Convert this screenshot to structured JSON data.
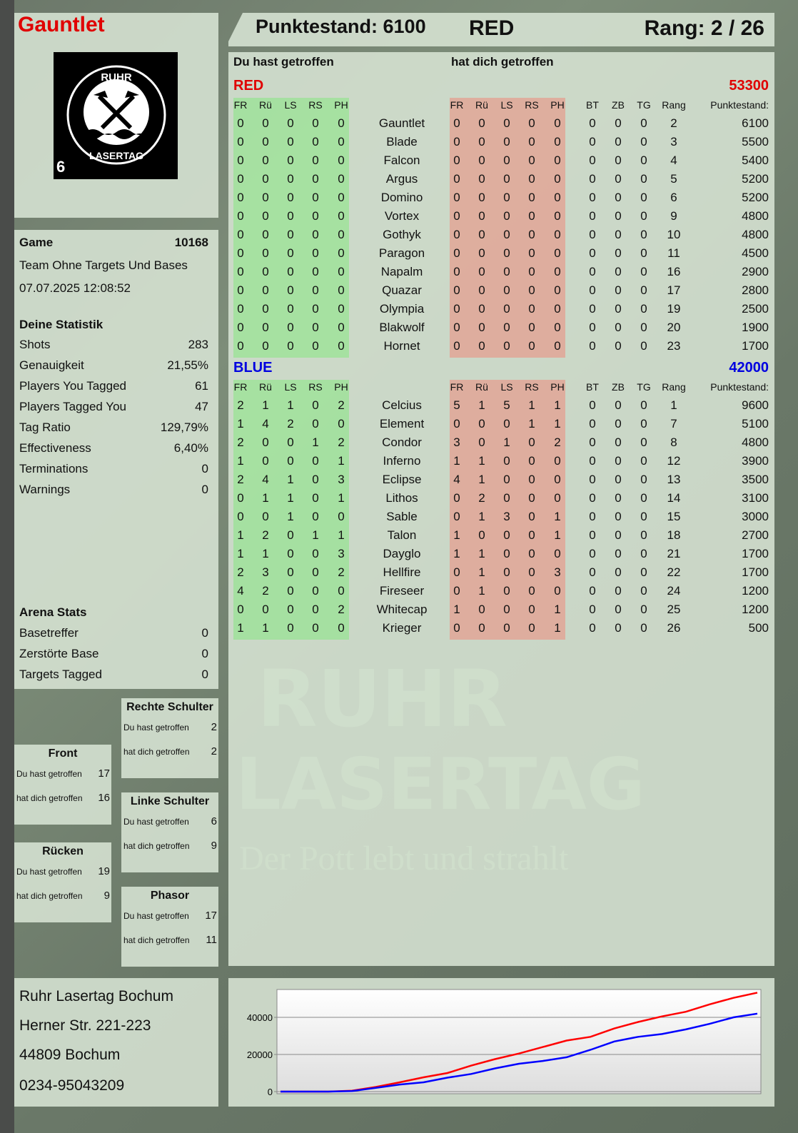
{
  "player": {
    "name": "Gauntlet",
    "logo_text": "RUHR LASERTAG",
    "logo_number": "6"
  },
  "header": {
    "score_label": "Punktestand: 6100",
    "team": "RED",
    "rank_label": "Rang: 2 / 26"
  },
  "game": {
    "label": "Game",
    "id": "10168",
    "mode": "Team Ohne Targets Und Bases",
    "datetime": "07.07.2025 12:08:52"
  },
  "stats": {
    "title": "Deine Statistik",
    "items": [
      {
        "label": "Shots",
        "value": "283"
      },
      {
        "label": "Genauigkeit",
        "value": "21,55%"
      },
      {
        "label": "Players You Tagged",
        "value": "61"
      },
      {
        "label": "Players Tagged You",
        "value": "47"
      },
      {
        "label": "Tag Ratio",
        "value": "129,79%"
      },
      {
        "label": "Effectiveness",
        "value": "6,40%"
      },
      {
        "label": "Terminations",
        "value": "0"
      },
      {
        "label": "Warnings",
        "value": "0"
      }
    ]
  },
  "arena": {
    "title": "Arena Stats",
    "items": [
      {
        "label": "Basetreffer",
        "value": "0"
      },
      {
        "label": "Zerstörte Base",
        "value": "0"
      },
      {
        "label": "Targets Tagged",
        "value": "0"
      }
    ]
  },
  "zones": [
    {
      "title": "Rechte Schulter",
      "hit_label": "Du hast getroffen",
      "hit": "2",
      "got_label": "hat dich getroffen",
      "got": "2"
    },
    {
      "title": "Front",
      "hit_label": "Du hast getroffen",
      "hit": "17",
      "got_label": "hat dich getroffen",
      "got": "16"
    },
    {
      "title": "Linke Schulter",
      "hit_label": "Du hast getroffen",
      "hit": "6",
      "got_label": "hat dich getroffen",
      "got": "9"
    },
    {
      "title": "Rücken",
      "hit_label": "Du hast getroffen",
      "hit": "19",
      "got_label": "hat dich getroffen",
      "got": "9"
    },
    {
      "title": "Phasor",
      "hit_label": "Du hast getroffen",
      "hit": "17",
      "got_label": "hat dich getroffen",
      "got": "11"
    }
  ],
  "address": {
    "line1": "Ruhr Lasertag Bochum",
    "line2": "Herner Str. 221-223",
    "line3": "44809 Bochum",
    "phone": "0234-95043209"
  },
  "watermark": {
    "line1": "RUHR",
    "line2": "LASERTAG",
    "slogan": "Der Pott lebt und strahlt"
  },
  "table": {
    "hit_header": "Du hast getroffen",
    "got_header": "hat dich getroffen",
    "columns": [
      "FR",
      "Rü",
      "LS",
      "RS",
      "PH"
    ],
    "extra_columns": [
      "BT",
      "ZB",
      "TG",
      "Rang",
      "Punktestand:"
    ],
    "teams": [
      {
        "name": "RED",
        "score": "53300",
        "color": "#e00000",
        "players": [
          [
            "Gauntlet",
            [
              0,
              0,
              0,
              0,
              0
            ],
            [
              0,
              0,
              0,
              0,
              0
            ],
            [
              0,
              0,
              0
            ],
            "2",
            "6100"
          ],
          [
            "Blade",
            [
              0,
              0,
              0,
              0,
              0
            ],
            [
              0,
              0,
              0,
              0,
              0
            ],
            [
              0,
              0,
              0
            ],
            "3",
            "5500"
          ],
          [
            "Falcon",
            [
              0,
              0,
              0,
              0,
              0
            ],
            [
              0,
              0,
              0,
              0,
              0
            ],
            [
              0,
              0,
              0
            ],
            "4",
            "5400"
          ],
          [
            "Argus",
            [
              0,
              0,
              0,
              0,
              0
            ],
            [
              0,
              0,
              0,
              0,
              0
            ],
            [
              0,
              0,
              0
            ],
            "5",
            "5200"
          ],
          [
            "Domino",
            [
              0,
              0,
              0,
              0,
              0
            ],
            [
              0,
              0,
              0,
              0,
              0
            ],
            [
              0,
              0,
              0
            ],
            "6",
            "5200"
          ],
          [
            "Vortex",
            [
              0,
              0,
              0,
              0,
              0
            ],
            [
              0,
              0,
              0,
              0,
              0
            ],
            [
              0,
              0,
              0
            ],
            "9",
            "4800"
          ],
          [
            "Gothyk",
            [
              0,
              0,
              0,
              0,
              0
            ],
            [
              0,
              0,
              0,
              0,
              0
            ],
            [
              0,
              0,
              0
            ],
            "10",
            "4800"
          ],
          [
            "Paragon",
            [
              0,
              0,
              0,
              0,
              0
            ],
            [
              0,
              0,
              0,
              0,
              0
            ],
            [
              0,
              0,
              0
            ],
            "11",
            "4500"
          ],
          [
            "Napalm",
            [
              0,
              0,
              0,
              0,
              0
            ],
            [
              0,
              0,
              0,
              0,
              0
            ],
            [
              0,
              0,
              0
            ],
            "16",
            "2900"
          ],
          [
            "Quazar",
            [
              0,
              0,
              0,
              0,
              0
            ],
            [
              0,
              0,
              0,
              0,
              0
            ],
            [
              0,
              0,
              0
            ],
            "17",
            "2800"
          ],
          [
            "Olympia",
            [
              0,
              0,
              0,
              0,
              0
            ],
            [
              0,
              0,
              0,
              0,
              0
            ],
            [
              0,
              0,
              0
            ],
            "19",
            "2500"
          ],
          [
            "Blakwolf",
            [
              0,
              0,
              0,
              0,
              0
            ],
            [
              0,
              0,
              0,
              0,
              0
            ],
            [
              0,
              0,
              0
            ],
            "20",
            "1900"
          ],
          [
            "Hornet",
            [
              0,
              0,
              0,
              0,
              0
            ],
            [
              0,
              0,
              0,
              0,
              0
            ],
            [
              0,
              0,
              0
            ],
            "23",
            "1700"
          ]
        ]
      },
      {
        "name": "BLUE",
        "score": "42000",
        "color": "#0000e0",
        "players": [
          [
            "Celcius",
            [
              2,
              1,
              1,
              0,
              2
            ],
            [
              5,
              1,
              5,
              1,
              1
            ],
            [
              0,
              0,
              0
            ],
            "1",
            "9600"
          ],
          [
            "Element",
            [
              1,
              4,
              2,
              0,
              0
            ],
            [
              0,
              0,
              0,
              1,
              1
            ],
            [
              0,
              0,
              0
            ],
            "7",
            "5100"
          ],
          [
            "Condor",
            [
              2,
              0,
              0,
              1,
              2
            ],
            [
              3,
              0,
              1,
              0,
              2
            ],
            [
              0,
              0,
              0
            ],
            "8",
            "4800"
          ],
          [
            "Inferno",
            [
              1,
              0,
              0,
              0,
              1
            ],
            [
              1,
              1,
              0,
              0,
              0
            ],
            [
              0,
              0,
              0
            ],
            "12",
            "3900"
          ],
          [
            "Eclipse",
            [
              2,
              4,
              1,
              0,
              3
            ],
            [
              4,
              1,
              0,
              0,
              0
            ],
            [
              0,
              0,
              0
            ],
            "13",
            "3500"
          ],
          [
            "Lithos",
            [
              0,
              1,
              1,
              0,
              1
            ],
            [
              0,
              2,
              0,
              0,
              0
            ],
            [
              0,
              0,
              0
            ],
            "14",
            "3100"
          ],
          [
            "Sable",
            [
              0,
              0,
              1,
              0,
              0
            ],
            [
              0,
              1,
              3,
              0,
              1
            ],
            [
              0,
              0,
              0
            ],
            "15",
            "3000"
          ],
          [
            "Talon",
            [
              1,
              2,
              0,
              1,
              1
            ],
            [
              1,
              0,
              0,
              0,
              1
            ],
            [
              0,
              0,
              0
            ],
            "18",
            "2700"
          ],
          [
            "Dayglo",
            [
              1,
              1,
              0,
              0,
              3
            ],
            [
              1,
              1,
              0,
              0,
              0
            ],
            [
              0,
              0,
              0
            ],
            "21",
            "1700"
          ],
          [
            "Hellfire",
            [
              2,
              3,
              0,
              0,
              2
            ],
            [
              0,
              1,
              0,
              0,
              3
            ],
            [
              0,
              0,
              0
            ],
            "22",
            "1700"
          ],
          [
            "Fireseer",
            [
              4,
              2,
              0,
              0,
              0
            ],
            [
              0,
              1,
              0,
              0,
              0
            ],
            [
              0,
              0,
              0
            ],
            "24",
            "1200"
          ],
          [
            "Whitecap",
            [
              0,
              0,
              0,
              0,
              2
            ],
            [
              1,
              0,
              0,
              0,
              1
            ],
            [
              0,
              0,
              0
            ],
            "25",
            "1200"
          ],
          [
            "Krieger",
            [
              1,
              1,
              0,
              0,
              0
            ],
            [
              0,
              0,
              0,
              0,
              1
            ],
            [
              0,
              0,
              0
            ],
            "26",
            "500"
          ]
        ]
      }
    ]
  },
  "colors": {
    "hit_bg": "#9fe29a",
    "got_bg": "#e0a999",
    "red": "#e00000",
    "blue": "#0000e0"
  },
  "chart_data": {
    "type": "line",
    "x": [
      0,
      1,
      2,
      3,
      4,
      5,
      6,
      7,
      8,
      9,
      10,
      11,
      12,
      13,
      14,
      15,
      16,
      17,
      18,
      19,
      20
    ],
    "ylim": [
      0,
      55000
    ],
    "yticks": [
      "0",
      "20000",
      "40000"
    ],
    "grid": true,
    "series": [
      {
        "color": "#ff0000",
        "values": [
          0,
          0,
          0,
          500,
          2500,
          5000,
          7700,
          10000,
          14000,
          17500,
          20500,
          24000,
          27500,
          29500,
          34000,
          37500,
          40500,
          43000,
          47000,
          50500,
          53300
        ]
      },
      {
        "color": "#0000ff",
        "values": [
          0,
          0,
          0,
          300,
          2000,
          3800,
          5000,
          7500,
          9500,
          12500,
          15000,
          16500,
          18500,
          22500,
          27000,
          29500,
          31000,
          33500,
          36500,
          40000,
          42000
        ]
      }
    ]
  }
}
